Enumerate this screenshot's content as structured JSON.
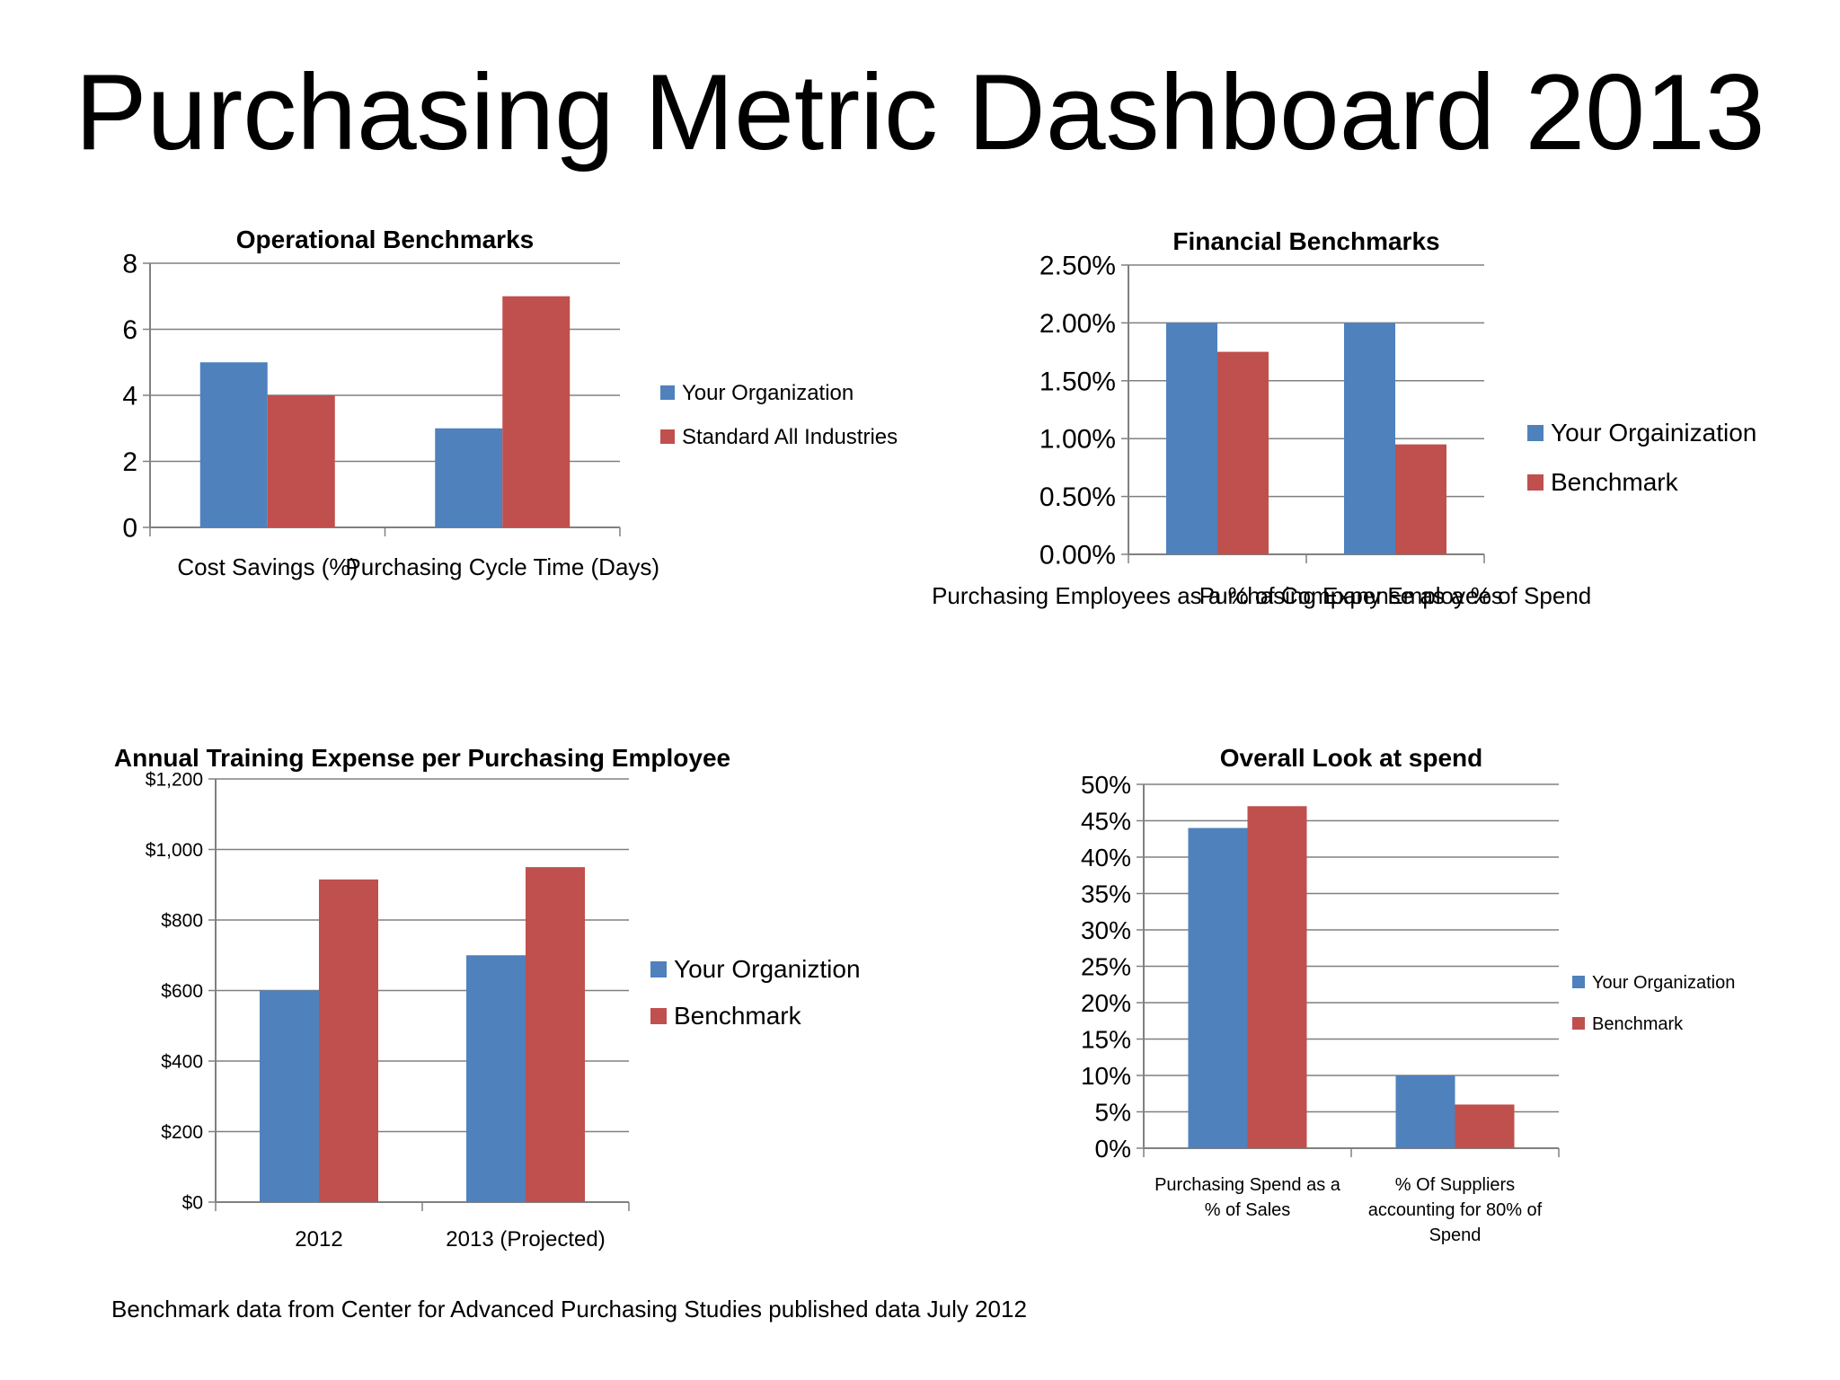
{
  "title": "Purchasing Metric Dashboard 2013",
  "footnote": "Benchmark data from Center for Advanced Purchasing Studies published data July 2012",
  "colors": {
    "blue": "#4f81bd",
    "red": "#c0504d",
    "grid": "#808080"
  },
  "chart_data": [
    {
      "type": "bar",
      "title": "Operational Benchmarks",
      "categories": [
        "Cost Savings (%)",
        "Purchasing Cycle Time (Days)"
      ],
      "series": [
        {
          "name": "Your Organization",
          "values": [
            5,
            3
          ]
        },
        {
          "name": "Standard All Industries",
          "values": [
            4,
            7
          ]
        }
      ],
      "ylim": [
        0,
        8
      ],
      "yticks": [
        "0",
        "2",
        "4",
        "6",
        "8"
      ],
      "grid": true,
      "legend": "right"
    },
    {
      "type": "bar",
      "title": "Financial Benchmarks",
      "categories": [
        "Purchasing Employees as a % of Company Employees",
        "Purchasing Expense as a % of Spend"
      ],
      "series": [
        {
          "name": "Your Orgainization",
          "values": [
            2.0,
            2.0
          ]
        },
        {
          "name": "Benchmark",
          "values": [
            1.75,
            0.95
          ]
        }
      ],
      "ylim": [
        0,
        2.5
      ],
      "yticks": [
        "0.00%",
        "0.50%",
        "1.00%",
        "1.50%",
        "2.00%",
        "2.50%"
      ],
      "grid": true,
      "legend": "right"
    },
    {
      "type": "bar",
      "title": "Annual Training Expense per Purchasing Employee",
      "categories": [
        "2012",
        "2013 (Projected)"
      ],
      "series": [
        {
          "name": "Your Organiztion",
          "values": [
            600,
            700
          ]
        },
        {
          "name": "Benchmark",
          "values": [
            915,
            950
          ]
        }
      ],
      "ylim": [
        0,
        1200
      ],
      "yticks": [
        "$0",
        "$200",
        "$400",
        "$600",
        "$800",
        "$1,000",
        "$1,200"
      ],
      "grid": true,
      "legend": "right"
    },
    {
      "type": "bar",
      "title": "Overall Look  at spend",
      "categories": [
        "Purchasing Spend as a % of Sales",
        "% Of Suppliers accounting for 80% of Spend"
      ],
      "series": [
        {
          "name": "Your Organization",
          "values": [
            44,
            10
          ]
        },
        {
          "name": "Benchmark",
          "values": [
            47,
            6
          ]
        }
      ],
      "ylim": [
        0,
        50
      ],
      "yticks": [
        "0%",
        "5%",
        "10%",
        "15%",
        "20%",
        "25%",
        "30%",
        "35%",
        "40%",
        "45%",
        "50%"
      ],
      "grid": true,
      "legend": "right"
    }
  ]
}
